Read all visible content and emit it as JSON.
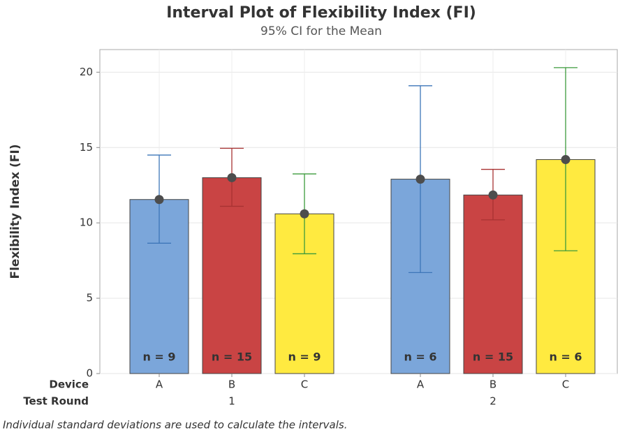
{
  "chart_data": {
    "type": "interval_bar",
    "title": "Interval Plot of Flexibility Index (FI)",
    "subtitle": "95% CI for the Mean",
    "ylabel": "Flexibility Index (FI)",
    "x_row_labels": [
      "Device",
      "Test Round"
    ],
    "footnote": "Individual standard deviations are used to calculate the intervals.",
    "bar_colors": [
      "#7ba6da",
      "#c94444",
      "#ffea40"
    ],
    "interval_colors": [
      "#3d76b8",
      "#a83232",
      "#3c9a3c"
    ],
    "ylim": [
      0,
      21.5
    ],
    "yticks": [
      0,
      5,
      10,
      15,
      20
    ],
    "grid": true,
    "groups": [
      {
        "name": "1",
        "categories": [
          "A",
          "B",
          "C"
        ],
        "values": [
          11.55,
          13.0,
          10.6
        ],
        "ci_lower": [
          8.65,
          11.1,
          7.95
        ],
        "ci_upper": [
          14.5,
          14.95,
          13.25
        ],
        "n_labels": [
          "n = 9",
          "n = 15",
          "n = 9"
        ]
      },
      {
        "name": "2",
        "categories": [
          "A",
          "B",
          "C"
        ],
        "values": [
          12.9,
          11.85,
          14.2
        ],
        "ci_lower": [
          6.7,
          10.2,
          8.15
        ],
        "ci_upper": [
          19.1,
          13.55,
          20.3
        ],
        "n_labels": [
          "n = 6",
          "n = 15",
          "n = 6"
        ]
      }
    ]
  }
}
